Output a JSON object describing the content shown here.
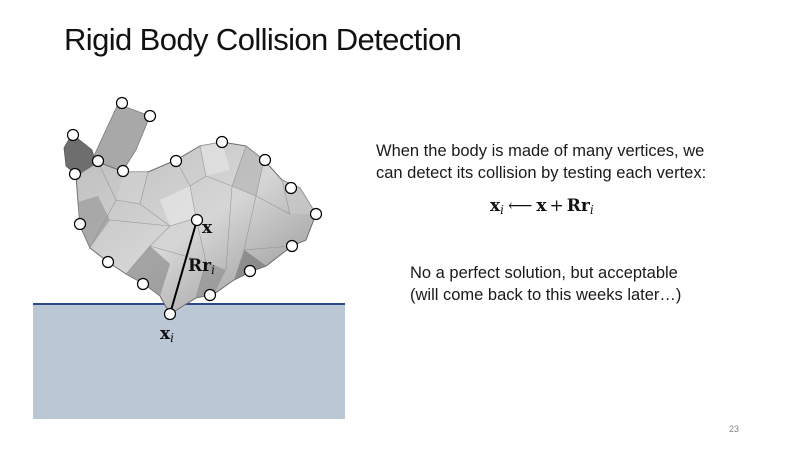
{
  "slide": {
    "title": "Rigid Body Collision Detection",
    "page_number": "23"
  },
  "text": {
    "line1": "When the body is made of many vertices, we",
    "line2": "can detect its collision by testing each vertex:",
    "note_line1": "No a perfect solution, but acceptable",
    "note_line2": "(will come back to this weeks later…)"
  },
  "equation": {
    "lhs": "x",
    "lhs_sub": "i",
    "arrow": "⟵",
    "term1": "x",
    "plus": "+",
    "term2": "Rr",
    "term2_sub": "i"
  },
  "figure": {
    "label_x": "x",
    "label_rr": "Rr",
    "label_rr_sub": "i",
    "label_xi": "x",
    "label_xi_sub": "i",
    "colors": {
      "ground_fill": "#bcc7d6",
      "ground_line": "#2c4a8a",
      "bunny_light": "#c9c9c9",
      "bunny_dark": "#7d7d7d",
      "vertex_fill": "#ffffff",
      "vertex_stroke": "#000000"
    }
  }
}
